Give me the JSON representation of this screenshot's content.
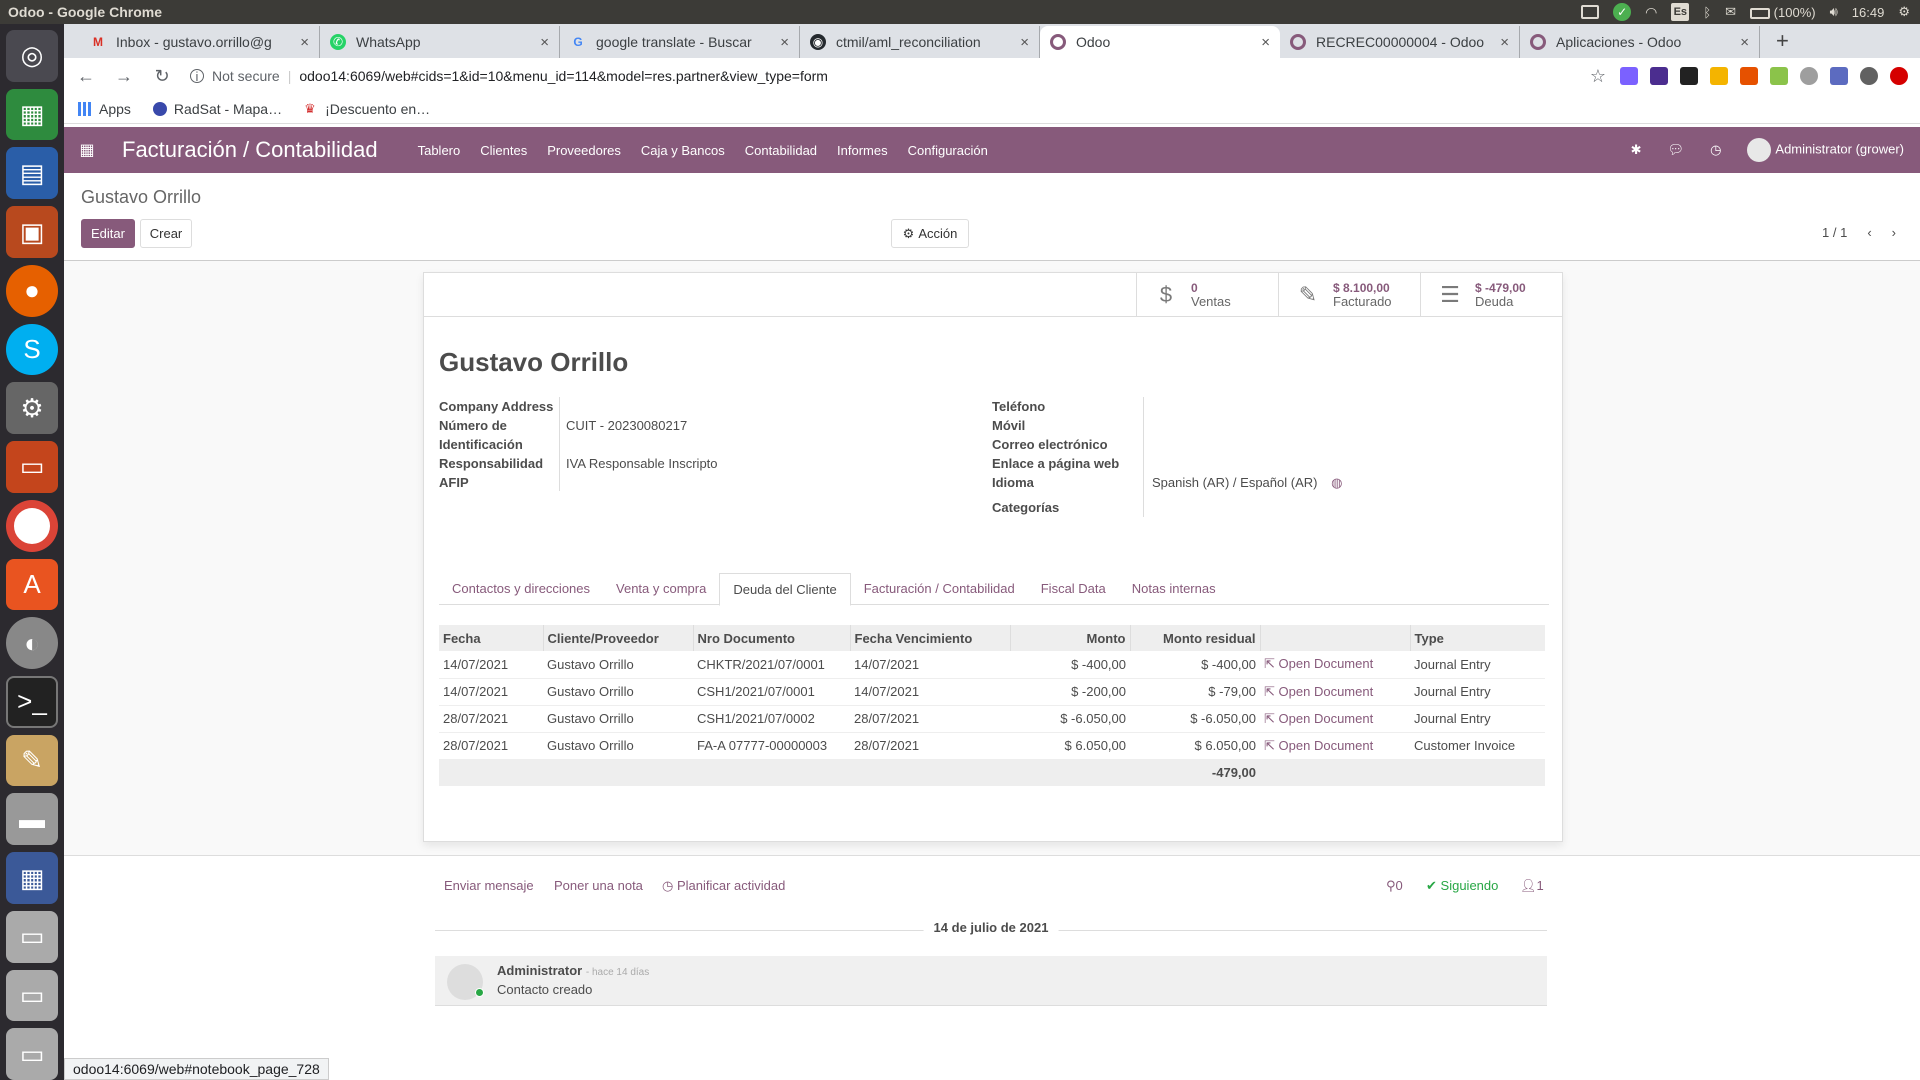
{
  "os": {
    "window_title": "Odoo - Google Chrome",
    "battery": "(100%)",
    "clock": "16:49",
    "keyboard": "Es"
  },
  "browser": {
    "tabs": [
      {
        "title": "Inbox - gustavo.orrillo@g",
        "icon": "gmail-icon"
      },
      {
        "title": "WhatsApp",
        "icon": "whatsapp-icon"
      },
      {
        "title": "google translate - Buscar",
        "icon": "google-icon"
      },
      {
        "title": "ctmil/aml_reconciliation",
        "icon": "github-icon"
      },
      {
        "title": "Odoo",
        "icon": "odoo-icon"
      },
      {
        "title": "RECREC00000004 - Odoo",
        "icon": "odoo-icon"
      },
      {
        "title": "Aplicaciones - Odoo",
        "icon": "odoo-icon"
      }
    ],
    "security": "Not secure",
    "url": "odoo14:6069/web#cids=1&id=10&menu_id=114&model=res.partner&view_type=form",
    "bookmarks": [
      "Apps",
      "RadSat - Mapa…",
      "¡Descuento en…"
    ],
    "status_url": "odoo14:6069/web#notebook_page_728"
  },
  "odoo": {
    "app_title": "Facturación / Contabilidad",
    "menu": [
      "Tablero",
      "Clientes",
      "Proveedores",
      "Caja y Bancos",
      "Contabilidad",
      "Informes",
      "Configuración"
    ],
    "user": "Administrator (grower)",
    "breadcrumb": "Gustavo Orrillo",
    "edit_label": "Editar",
    "create_label": "Crear",
    "action_label": "Acción",
    "pager": "1 / 1",
    "stats": [
      {
        "value": "0",
        "label": "Ventas",
        "icon": "dollar-icon"
      },
      {
        "value": "$ 8.100,00",
        "label": "Facturado",
        "icon": "edit-icon"
      },
      {
        "value": "$ -479,00",
        "label": "Deuda",
        "icon": "list-icon"
      }
    ],
    "partner_name": "Gustavo Orrillo",
    "fields_left": {
      "company_address_label": "Company Address",
      "id_label_1": "Número de",
      "id_label_2": "Identificación",
      "id_value": "CUIT - 20230080217",
      "resp_label_1": "Responsabilidad",
      "resp_label_2": "AFIP",
      "resp_value": "IVA Responsable Inscripto"
    },
    "fields_right": {
      "phone_label": "Teléfono",
      "mobile_label": "Móvil",
      "email_label": "Correo electrónico",
      "web_label": "Enlace a página web",
      "lang_label": "Idioma",
      "lang_value": "Spanish (AR) / Español (AR)",
      "cat_label": "Categorías"
    },
    "tabs": [
      "Contactos y direcciones",
      "Venta y compra",
      "Deuda del Cliente",
      "Facturación / Contabilidad",
      "Fiscal Data",
      "Notas internas"
    ],
    "table": {
      "headers": [
        "Fecha",
        "Cliente/Proveedor",
        "Nro Documento",
        "Fecha Vencimiento",
        "Monto",
        "Monto residual",
        "",
        "Type"
      ],
      "rows": [
        [
          "14/07/2021",
          "Gustavo Orrillo",
          "CHKTR/2021/07/0001",
          "14/07/2021",
          "$ -400,00",
          "$ -400,00",
          "Open Document",
          "Journal Entry"
        ],
        [
          "14/07/2021",
          "Gustavo Orrillo",
          "CSH1/2021/07/0001",
          "14/07/2021",
          "$ -200,00",
          "$ -79,00",
          "Open Document",
          "Journal Entry"
        ],
        [
          "28/07/2021",
          "Gustavo Orrillo",
          "CSH1/2021/07/0002",
          "28/07/2021",
          "$ -6.050,00",
          "$ -6.050,00",
          "Open Document",
          "Journal Entry"
        ],
        [
          "28/07/2021",
          "Gustavo Orrillo",
          "FA-A 07777-00000003",
          "28/07/2021",
          "$ 6.050,00",
          "$ 6.050,00",
          "Open Document",
          "Customer Invoice"
        ]
      ],
      "total": "-479,00"
    },
    "chatter": {
      "send_message": "Enviar mensaje",
      "log_note": "Poner una nota",
      "schedule": "Planificar actividad",
      "attachments": "0",
      "following": "Siguiendo",
      "followers": "1",
      "date": "14 de julio de 2021",
      "author": "Administrator",
      "time": "- hace 14 días",
      "body": "Contacto creado"
    }
  }
}
